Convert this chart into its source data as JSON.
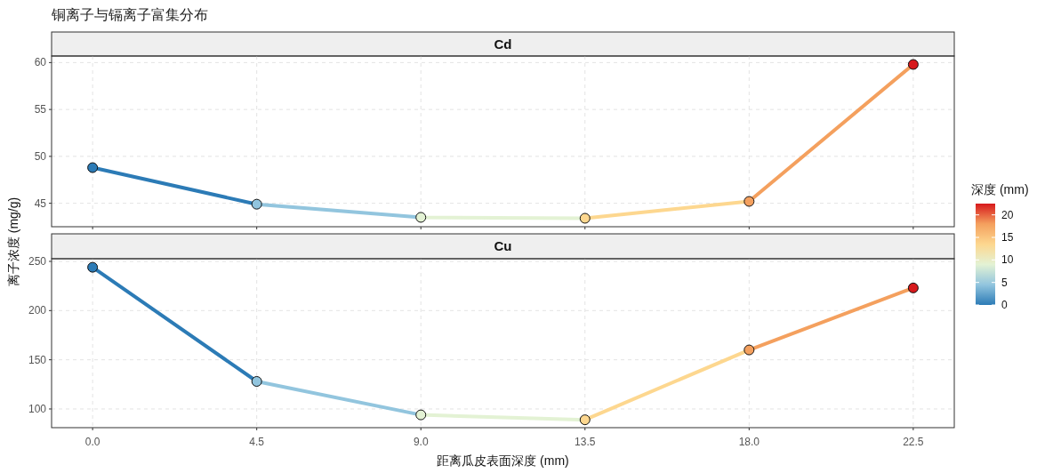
{
  "chart_data": [
    {
      "type": "line",
      "title": "铜离子与镉离子富集分布",
      "subtitle": "Cd",
      "ylabel": "离子浓度 (mg/g)",
      "clabel": "深度 (mm)",
      "clim": [
        0,
        22.5
      ],
      "cticks": [
        0,
        5,
        10,
        15,
        20
      ],
      "x": [
        0,
        4.5,
        9,
        13.5,
        18,
        22.5
      ],
      "values": [
        48.8,
        44.9,
        43.5,
        43.4,
        45.2,
        59.8
      ],
      "colors": [
        "#2c7bb6",
        "#92c5de",
        "#e3f2d4",
        "#fdd78f",
        "#f4a05e",
        "#d7191c"
      ],
      "xlim": [
        -1.125,
        23.625
      ],
      "ylim": [
        42.5,
        60.7
      ],
      "xticks": [
        0,
        4.5,
        9,
        13.5,
        18,
        22.5
      ],
      "yticks": [
        45,
        50,
        55,
        60
      ],
      "grid": true,
      "marker": "circle",
      "line_style": "solid",
      "tick_labels": "y"
    },
    {
      "type": "line",
      "subtitle": "Cu",
      "xlabel": "距离瓜皮表面深度 (mm)",
      "x": [
        0,
        4.5,
        9,
        13.5,
        18,
        22.5
      ],
      "values": [
        244,
        128,
        94,
        89,
        160,
        223
      ],
      "colors": [
        "#2c7bb6",
        "#92c5de",
        "#e3f2d4",
        "#fdd78f",
        "#f4a05e",
        "#d7191c"
      ],
      "xlim": [
        -1.125,
        23.625
      ],
      "ylim": [
        81,
        252.7
      ],
      "xticks": [
        {
          "value": 0,
          "label": "0.0"
        },
        4.5,
        {
          "value": 9,
          "label": "9.0"
        },
        13.5,
        {
          "value": 18,
          "label": "18.0"
        },
        22.5
      ],
      "yticks": [
        100,
        150,
        200,
        250
      ],
      "grid": true,
      "marker": "circle",
      "line_style": "solid"
    }
  ]
}
